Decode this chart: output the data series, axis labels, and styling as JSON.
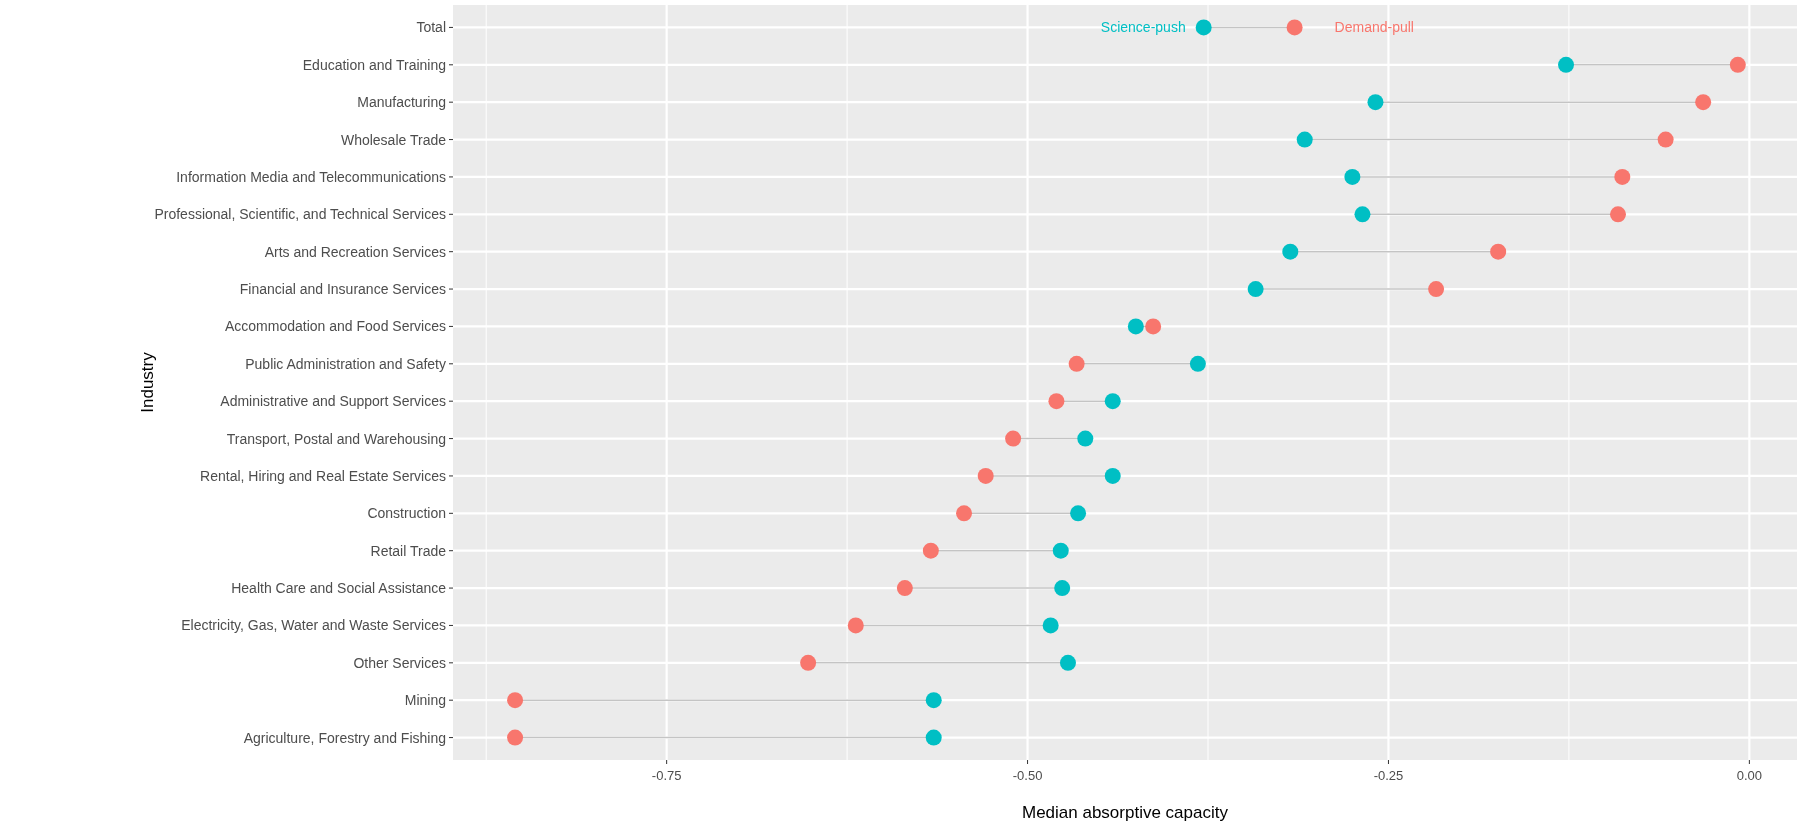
{
  "chart_data": {
    "type": "scatter",
    "xlabel": "Median absorptive capacity",
    "ylabel": "Industry",
    "orientation": "horizontal",
    "categories": [
      "Total",
      "Education and Training",
      "Manufacturing",
      "Wholesale Trade",
      "Information Media and Telecommunications",
      "Professional, Scientific, and Technical Services",
      "Arts and Recreation Services",
      "Financial and Insurance Services",
      "Accommodation and Food Services",
      "Public Administration and Safety",
      "Administrative and Support Services",
      "Transport, Postal and Warehousing",
      "Rental, Hiring and Real Estate Services",
      "Construction",
      "Retail Trade",
      "Health Care and Social Assistance",
      "Electricity, Gas, Water and Waste Services",
      "Other Services",
      "Mining",
      "Agriculture, Forestry and Fishing"
    ],
    "series": [
      {
        "name": "Science-push",
        "color": "#00bfc4",
        "values": [
          -0.378,
          -0.127,
          -0.259,
          -0.308,
          -0.275,
          -0.268,
          -0.318,
          -0.342,
          -0.425,
          -0.382,
          -0.441,
          -0.46,
          -0.441,
          -0.465,
          -0.477,
          -0.476,
          -0.484,
          -0.472,
          -0.565,
          -0.565
        ]
      },
      {
        "name": "Demand-pull",
        "color": "#f8766d",
        "values": [
          -0.315,
          -0.008,
          -0.032,
          -0.058,
          -0.088,
          -0.091,
          -0.174,
          -0.217,
          -0.413,
          -0.466,
          -0.48,
          -0.51,
          -0.529,
          -0.544,
          -0.567,
          -0.585,
          -0.619,
          -0.652,
          -0.855,
          -0.855
        ]
      }
    ],
    "xlim": [
      -0.898,
      0.033
    ],
    "xticks": [
      {
        "value": -0.75,
        "label": "-0.75"
      },
      {
        "value": -0.5,
        "label": "-0.50"
      },
      {
        "value": -0.25,
        "label": "-0.25"
      },
      {
        "value": 0,
        "label": "0.00"
      }
    ],
    "grid": true,
    "marker": "circle"
  }
}
